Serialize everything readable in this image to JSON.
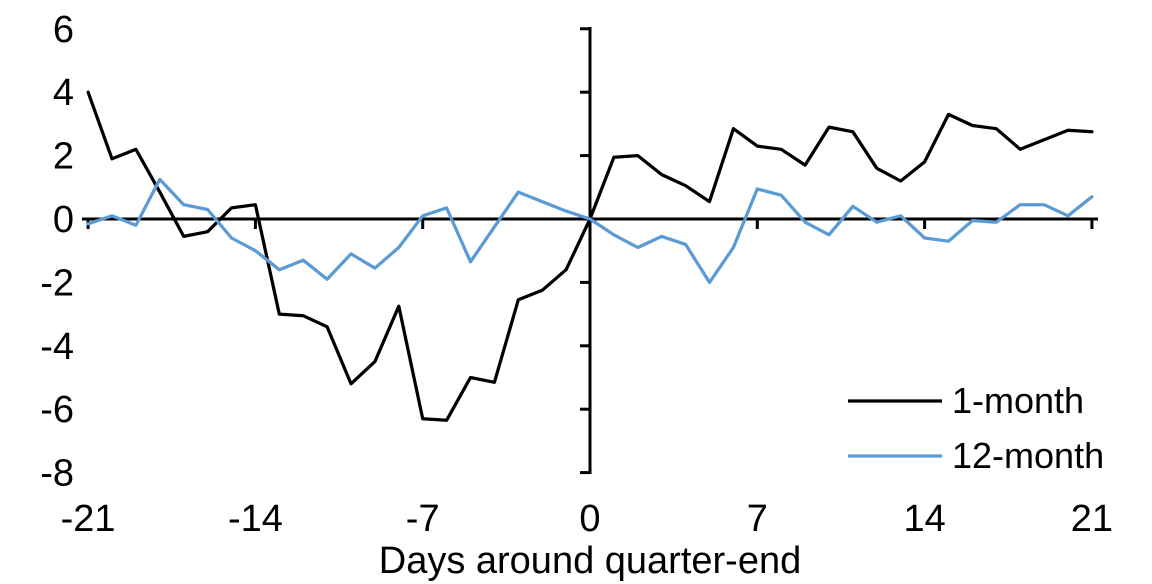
{
  "chart_data": {
    "type": "line",
    "title": "",
    "xlabel": "Days around quarter-end",
    "ylabel": "",
    "x": [
      -21,
      -20,
      -19,
      -18,
      -17,
      -16,
      -15,
      -14,
      -13,
      -12,
      -11,
      -10,
      -9,
      -8,
      -7,
      -6,
      -5,
      -4,
      -3,
      -2,
      -1,
      0,
      1,
      2,
      3,
      4,
      5,
      6,
      7,
      8,
      9,
      10,
      11,
      12,
      13,
      14,
      15,
      16,
      17,
      18,
      19,
      20,
      21
    ],
    "series": [
      {
        "name": "1-month",
        "color": "#000000",
        "values": [
          4.0,
          1.9,
          2.2,
          0.85,
          -0.55,
          -0.4,
          0.35,
          0.45,
          -3.0,
          -3.05,
          -3.4,
          -5.2,
          -4.5,
          -2.75,
          -6.3,
          -6.35,
          -5.0,
          -5.15,
          -2.55,
          -2.25,
          -1.6,
          0.0,
          1.95,
          2.0,
          1.4,
          1.05,
          0.55,
          2.85,
          2.3,
          2.2,
          1.7,
          2.9,
          2.75,
          1.6,
          1.2,
          1.8,
          3.3,
          2.95,
          2.85,
          2.2,
          2.5,
          2.8,
          2.75
        ]
      },
      {
        "name": "12-month",
        "color": "#5B9BD5",
        "values": [
          -0.15,
          0.1,
          -0.2,
          1.25,
          0.45,
          0.3,
          -0.6,
          -1.0,
          -1.6,
          -1.3,
          -1.9,
          -1.1,
          -1.55,
          -0.9,
          0.1,
          0.35,
          -1.35,
          -0.25,
          0.85,
          0.55,
          0.25,
          0.0,
          -0.5,
          -0.9,
          -0.55,
          -0.8,
          -2.0,
          -0.9,
          0.95,
          0.75,
          -0.1,
          -0.5,
          0.4,
          -0.1,
          0.1,
          -0.6,
          -0.7,
          -0.05,
          -0.1,
          0.45,
          0.45,
          0.1,
          0.7
        ]
      }
    ],
    "xticks": [
      -21,
      -14,
      -7,
      0,
      7,
      14,
      21
    ],
    "yticks": [
      -8,
      -6,
      -4,
      -2,
      0,
      2,
      4,
      6
    ],
    "xlim": [
      -21,
      21
    ],
    "ylim": [
      -8,
      6
    ],
    "grid": false,
    "legend_position": "lower-right",
    "axis_color": "#000000",
    "axes_cross_at_zero": true
  }
}
